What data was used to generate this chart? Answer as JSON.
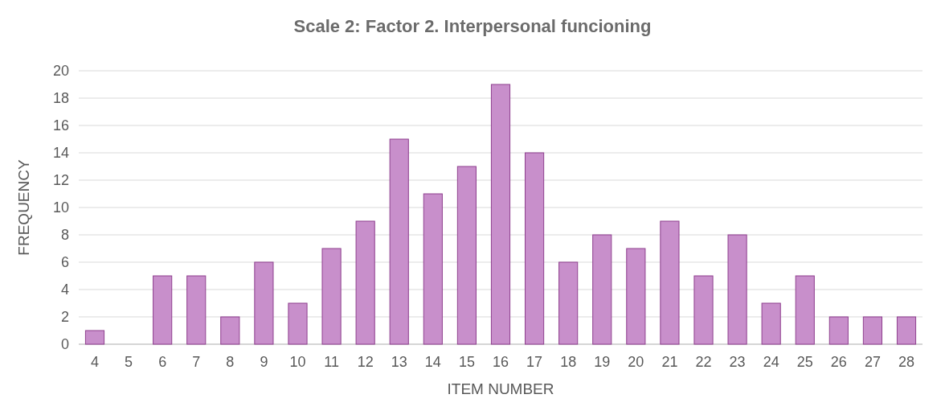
{
  "chart_data": {
    "type": "bar",
    "title": "Scale 2: Factor 2. Interpersonal funcioning",
    "xlabel": "ITEM NUMBER",
    "ylabel": "FREQUENCY",
    "categories": [
      "4",
      "5",
      "6",
      "7",
      "8",
      "9",
      "10",
      "11",
      "12",
      "13",
      "14",
      "15",
      "16",
      "17",
      "18",
      "19",
      "20",
      "21",
      "22",
      "23",
      "24",
      "25",
      "26",
      "27",
      "28"
    ],
    "values": [
      1,
      0,
      5,
      5,
      2,
      6,
      3,
      7,
      9,
      15,
      11,
      13,
      19,
      14,
      6,
      8,
      7,
      9,
      5,
      8,
      3,
      5,
      2,
      2,
      2
    ],
    "color": "#c88fcb",
    "ylim": [
      0,
      20
    ],
    "yticks": [
      0,
      2,
      4,
      6,
      8,
      10,
      12,
      14,
      16,
      18,
      20
    ],
    "grid": "y"
  }
}
